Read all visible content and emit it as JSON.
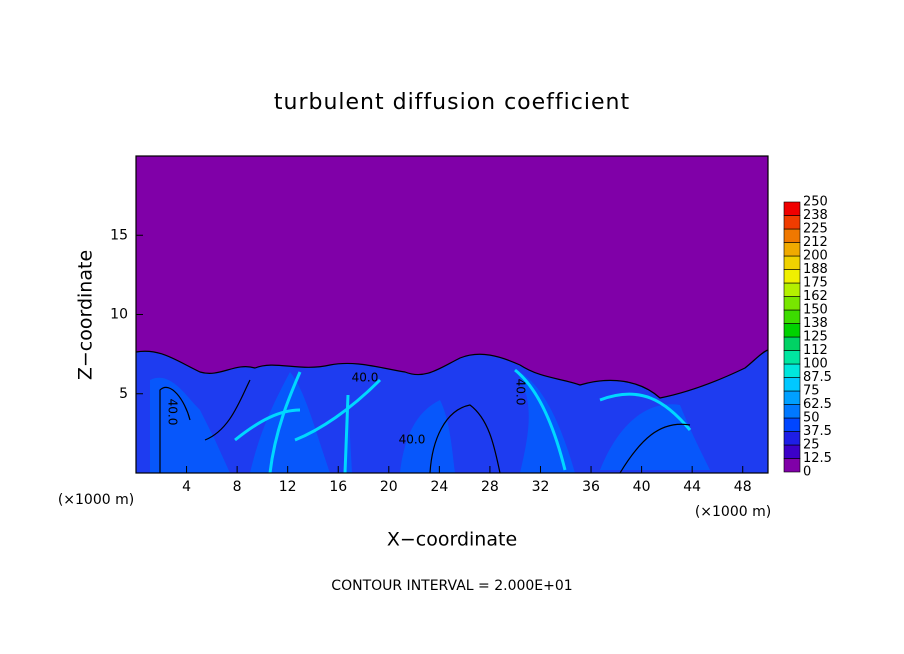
{
  "chart_data": {
    "type": "contour",
    "title": "turbulent diffusion coefficient",
    "x_label": "X−coordinate",
    "y_label": "Z−coordinate",
    "x_unit": "(×1000 m)",
    "footer": "CONTOUR INTERVAL = 2.000E+01",
    "xlim": [
      0,
      50
    ],
    "ylim": [
      0,
      20
    ],
    "xticks": [
      4,
      8,
      12,
      16,
      20,
      24,
      28,
      32,
      36,
      40,
      44,
      48
    ],
    "yticks": [
      5,
      10,
      15
    ],
    "contour_labels": [
      "40.0",
      "40.0",
      "40.0",
      "40.0"
    ],
    "colorbar": {
      "levels": [
        0,
        12.5,
        25,
        37.5,
        50,
        62.5,
        75,
        87.5,
        100,
        112,
        125,
        138,
        150,
        162,
        175,
        188,
        200,
        212,
        225,
        238,
        250
      ],
      "colors": [
        "#8000a8",
        "#3c00c8",
        "#1e1ee6",
        "#0046ff",
        "#0078ff",
        "#00a0ff",
        "#00c8ff",
        "#00e6dc",
        "#00e6a0",
        "#00d264",
        "#00d200",
        "#3cdc00",
        "#78e600",
        "#b4f000",
        "#f0f000",
        "#f0d200",
        "#f0aa00",
        "#f07800",
        "#f03c00",
        "#f00000"
      ]
    }
  }
}
